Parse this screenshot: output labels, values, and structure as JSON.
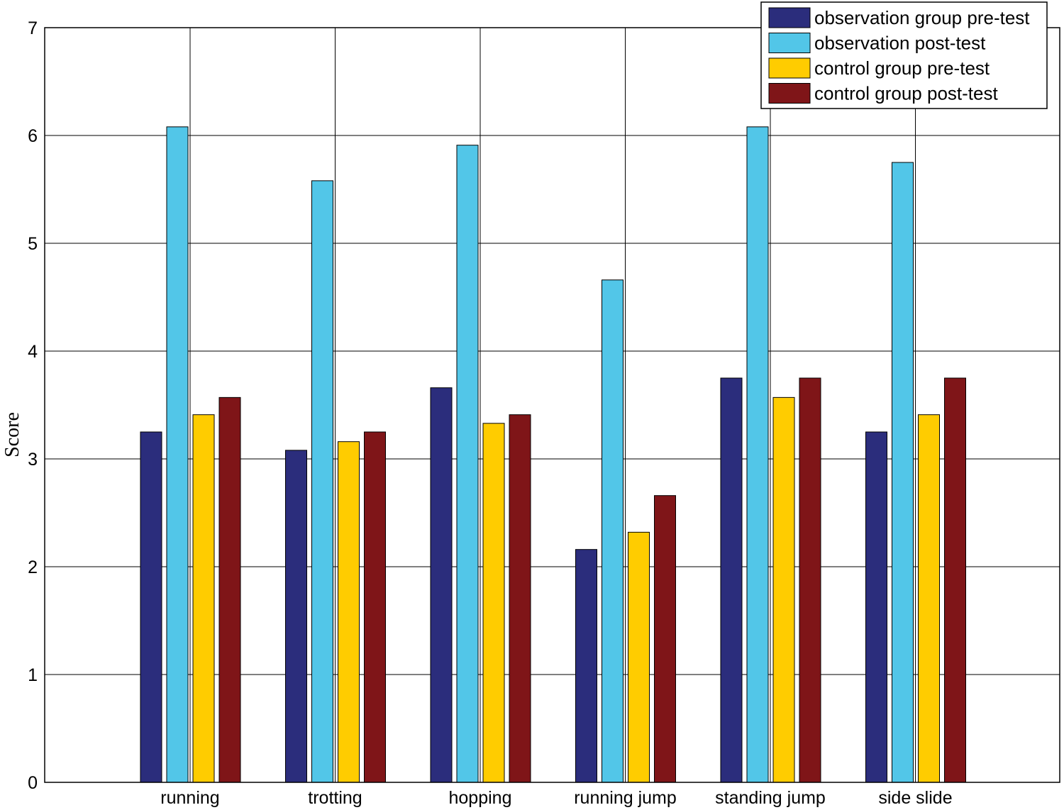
{
  "chart_data": {
    "type": "bar",
    "title": "",
    "xlabel": "",
    "ylabel": "Score",
    "ylim": [
      0,
      7
    ],
    "yticks": [
      0,
      1,
      2,
      3,
      4,
      5,
      6,
      7
    ],
    "grid": true,
    "legend_position": "top-right",
    "categories": [
      "running",
      "trotting",
      "hopping",
      "running jump",
      "standing jump",
      "side slide"
    ],
    "series": [
      {
        "name": "observation group pre-test",
        "color": "#2b2d7c",
        "values": [
          3.25,
          3.08,
          3.66,
          2.16,
          3.75,
          3.25
        ]
      },
      {
        "name": "observation post-test",
        "color": "#52c6e8",
        "values": [
          6.08,
          5.58,
          5.91,
          4.66,
          6.08,
          5.75
        ]
      },
      {
        "name": "control group pre-test",
        "color": "#ffcc00",
        "values": [
          3.41,
          3.16,
          3.33,
          2.32,
          3.57,
          3.41
        ]
      },
      {
        "name": "control group post-test",
        "color": "#7f1518",
        "values": [
          3.57,
          3.25,
          3.41,
          2.66,
          3.75,
          3.75
        ]
      }
    ]
  }
}
